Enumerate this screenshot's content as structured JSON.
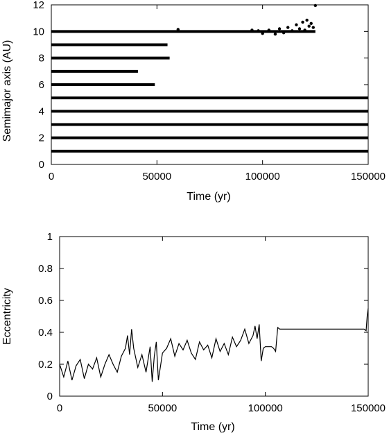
{
  "chart_data": [
    {
      "type": "scatter",
      "xlabel": "Time (yr)",
      "ylabel": "Semimajor axis (AU)",
      "xlim": [
        0,
        150000
      ],
      "ylim": [
        0,
        12
      ],
      "xticks": [
        0,
        50000,
        100000,
        150000
      ],
      "xtick_labels": [
        "0",
        "50000",
        "100000",
        "150000"
      ],
      "yticks": [
        0,
        2,
        4,
        6,
        8,
        10,
        12
      ],
      "ytick_labels": [
        "0",
        "2",
        "4",
        "6",
        "8",
        "10",
        "12"
      ],
      "color": "#000000",
      "series": [
        {
          "a_au": 1,
          "t_end": 150000
        },
        {
          "a_au": 2,
          "t_end": 150000
        },
        {
          "a_au": 3,
          "t_end": 150000
        },
        {
          "a_au": 4,
          "t_end": 150000
        },
        {
          "a_au": 5,
          "t_end": 150000
        },
        {
          "a_au": 6,
          "t_end": 49000
        },
        {
          "a_au": 7,
          "t_end": 41000
        },
        {
          "a_au": 8,
          "t_end": 56000
        },
        {
          "a_au": 9,
          "t_end": 55000
        },
        {
          "a_au": 10,
          "t_end": 125000
        }
      ],
      "scattered_points": [
        {
          "x": 60000,
          "y": 10.15
        },
        {
          "x": 95000,
          "y": 10.1
        },
        {
          "x": 98000,
          "y": 10.05
        },
        {
          "x": 100000,
          "y": 9.85
        },
        {
          "x": 103000,
          "y": 10.1
        },
        {
          "x": 106000,
          "y": 9.8
        },
        {
          "x": 108000,
          "y": 10.2
        },
        {
          "x": 110000,
          "y": 9.9
        },
        {
          "x": 112000,
          "y": 10.3
        },
        {
          "x": 114000,
          "y": 10.05
        },
        {
          "x": 116000,
          "y": 10.5
        },
        {
          "x": 117500,
          "y": 10.2
        },
        {
          "x": 119000,
          "y": 10.7
        },
        {
          "x": 120000,
          "y": 10.1
        },
        {
          "x": 121000,
          "y": 10.85
        },
        {
          "x": 122000,
          "y": 10.4
        },
        {
          "x": 123000,
          "y": 10.6
        },
        {
          "x": 124000,
          "y": 10.3
        },
        {
          "x": 125000,
          "y": 11.95
        }
      ]
    },
    {
      "type": "line",
      "xlabel": "Time (yr)",
      "ylabel": "Eccentricity",
      "xlim": [
        0,
        150000
      ],
      "ylim": [
        0,
        1
      ],
      "xticks": [
        0,
        50000,
        100000,
        150000
      ],
      "xtick_labels": [
        "0",
        "50000",
        "100000",
        "150000"
      ],
      "yticks": [
        0,
        0.2,
        0.4,
        0.6,
        0.8,
        1
      ],
      "ytick_labels": [
        "0",
        "0.2",
        "0.4",
        "0.6",
        "0.8",
        "1"
      ],
      "color": "#000000",
      "x": [
        0,
        2000,
        4000,
        6000,
        8000,
        10000,
        12000,
        14000,
        16000,
        18000,
        20000,
        22000,
        24000,
        26000,
        28000,
        30000,
        32000,
        33000,
        34000,
        35000,
        36000,
        38000,
        40000,
        42000,
        44000,
        45000,
        46000,
        47000,
        48000,
        50000,
        52000,
        54000,
        56000,
        58000,
        60000,
        62000,
        64000,
        66000,
        68000,
        70000,
        72000,
        74000,
        76000,
        78000,
        80000,
        82000,
        84000,
        86000,
        88000,
        90000,
        92000,
        94000,
        95000,
        96000,
        97000,
        98000,
        99000,
        100000,
        101000,
        102000,
        103000,
        104000,
        105000,
        106000,
        107000,
        110000,
        120000,
        130000,
        140000,
        148000,
        149000,
        149500,
        150000
      ],
      "y": [
        0.2,
        0.12,
        0.22,
        0.1,
        0.19,
        0.23,
        0.11,
        0.2,
        0.17,
        0.24,
        0.12,
        0.2,
        0.26,
        0.2,
        0.15,
        0.25,
        0.3,
        0.38,
        0.26,
        0.42,
        0.3,
        0.18,
        0.26,
        0.15,
        0.31,
        0.09,
        0.25,
        0.34,
        0.1,
        0.27,
        0.3,
        0.36,
        0.25,
        0.33,
        0.29,
        0.35,
        0.27,
        0.23,
        0.34,
        0.29,
        0.32,
        0.24,
        0.36,
        0.28,
        0.33,
        0.26,
        0.37,
        0.31,
        0.35,
        0.42,
        0.33,
        0.38,
        0.44,
        0.36,
        0.45,
        0.22,
        0.3,
        0.31,
        0.31,
        0.31,
        0.31,
        0.3,
        0.28,
        0.43,
        0.42,
        0.42,
        0.42,
        0.42,
        0.42,
        0.42,
        0.41,
        0.5,
        0.55
      ]
    }
  ]
}
